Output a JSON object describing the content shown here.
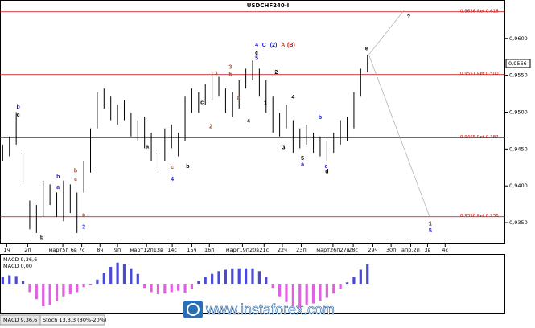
{
  "chart_data": {
    "type": "hlbar",
    "title": "USDCHF240-I",
    "xlim": [
      -0.4,
      74.4
    ],
    "ylim": [
      0.9325,
      0.9639
    ],
    "yticks": [
      {
        "value": 0.96,
        "label": "0,9600"
      },
      {
        "value": 0.955,
        "label": "0,9550"
      },
      {
        "value": 0.95,
        "label": "0,9500"
      },
      {
        "value": 0.945,
        "label": "0,9450"
      },
      {
        "value": 0.94,
        "label": "0,9400"
      },
      {
        "value": 0.935,
        "label": "0,9350"
      }
    ],
    "xticks": [
      {
        "value": 0.6,
        "label": "1ч"
      },
      {
        "value": 3.7,
        "label": "2п"
      },
      {
        "value": 8.9,
        "label": "март5п 6в"
      },
      {
        "value": 11.7,
        "label": "7с"
      },
      {
        "value": 14.4,
        "label": "8ч"
      },
      {
        "value": 17.0,
        "label": "9п"
      },
      {
        "value": 21.3,
        "label": "март12п13в"
      },
      {
        "value": 25.1,
        "label": "14с"
      },
      {
        "value": 28.0,
        "label": "15ч"
      },
      {
        "value": 30.6,
        "label": "16п"
      },
      {
        "value": 35.5,
        "label": "март19п20в"
      },
      {
        "value": 38.7,
        "label": "21с"
      },
      {
        "value": 41.4,
        "label": "22ч"
      },
      {
        "value": 44.2,
        "label": "23п"
      },
      {
        "value": 48.9,
        "label": "март26п27в"
      },
      {
        "value": 51.9,
        "label": "28с"
      },
      {
        "value": 54.8,
        "label": "29ч"
      },
      {
        "value": 57.5,
        "label": "30п"
      },
      {
        "value": 60.4,
        "label": "апр.2п"
      },
      {
        "value": 62.9,
        "label": "3в"
      },
      {
        "value": 65.5,
        "label": "4с"
      }
    ],
    "color": "#000000",
    "high": [
      0.9456,
      0.9467,
      0.95,
      0.9445,
      0.938,
      0.9374,
      0.9407,
      0.9402,
      0.9391,
      0.9407,
      0.9402,
      0.9391,
      0.9434,
      0.9478,
      0.9527,
      0.9532,
      0.9521,
      0.951,
      0.9516,
      0.9499,
      0.9489,
      0.9494,
      0.9472,
      0.9445,
      0.9478,
      0.9483,
      0.9472,
      0.9521,
      0.9532,
      0.9527,
      0.9538,
      0.9554,
      0.9548,
      0.9532,
      0.9527,
      0.9543,
      0.9559,
      0.957,
      0.9559,
      0.9543,
      0.9521,
      0.9499,
      0.951,
      0.9489,
      0.9478,
      0.9483,
      0.9472,
      0.9467,
      0.9461,
      0.9472,
      0.9489,
      0.9494,
      0.9527,
      0.9559,
      0.9578
    ],
    "low": [
      0.9434,
      0.944,
      0.9456,
      0.9402,
      0.9341,
      0.9336,
      0.9358,
      0.9374,
      0.9358,
      0.9352,
      0.9363,
      0.9336,
      0.9391,
      0.9418,
      0.9478,
      0.9505,
      0.9489,
      0.9483,
      0.9489,
      0.9467,
      0.9461,
      0.9451,
      0.9434,
      0.9418,
      0.9434,
      0.9451,
      0.944,
      0.9461,
      0.9499,
      0.9499,
      0.951,
      0.9516,
      0.9521,
      0.9499,
      0.9494,
      0.9505,
      0.9532,
      0.9543,
      0.9521,
      0.9499,
      0.9472,
      0.9467,
      0.9478,
      0.9445,
      0.9451,
      0.9456,
      0.9445,
      0.944,
      0.9434,
      0.9445,
      0.9456,
      0.9461,
      0.9478,
      0.9521,
      0.9554
    ],
    "levels": [
      {
        "value": 0.9636,
        "label": "0.9636 Ret 0.618"
      },
      {
        "value": 0.9551,
        "label": "0.9551 Ret 0.500"
      },
      {
        "value": 0.9465,
        "label": "0.9465 Ret 0.382"
      },
      {
        "value": 0.9358,
        "label": "0.9358 Ret 0.236"
      }
    ],
    "level_color": "#c00000",
    "last_price": {
      "value": 0.9566,
      "label": "0,9566"
    },
    "projections": [
      [
        [
          54.2,
          0.9578
        ],
        [
          59.4,
          0.9638
        ]
      ],
      [
        [
          54.2,
          0.9578
        ],
        [
          63.3,
          0.9356
        ]
      ]
    ],
    "annotations": [
      {
        "text": "b",
        "x": 2.3,
        "y": 0.9507,
        "color": "#1a1adc"
      },
      {
        "text": "c",
        "x": 2.3,
        "y": 0.9496,
        "color": "#000000"
      },
      {
        "text": "b",
        "x": 5.8,
        "y": 0.933,
        "color": "#000000"
      },
      {
        "text": "b",
        "x": 8.2,
        "y": 0.9412,
        "color": "#1a1adc"
      },
      {
        "text": "a",
        "x": 8.2,
        "y": 0.9398,
        "color": "#1a1adc"
      },
      {
        "text": "b",
        "x": 10.8,
        "y": 0.942,
        "color": "#a0522d"
      },
      {
        "text": "c",
        "x": 10.8,
        "y": 0.9409,
        "color": "#a0522d"
      },
      {
        "text": "c",
        "x": 12.0,
        "y": 0.936,
        "color": "#a0522d"
      },
      {
        "text": "2",
        "x": 12.0,
        "y": 0.9344,
        "color": "#1a1adc"
      },
      {
        "text": "a",
        "x": 21.4,
        "y": 0.9453,
        "color": "#000000"
      },
      {
        "text": "c",
        "x": 25.1,
        "y": 0.9425,
        "color": "#a0522d"
      },
      {
        "text": "4",
        "x": 25.1,
        "y": 0.9409,
        "color": "#1a1adc"
      },
      {
        "text": "b",
        "x": 27.4,
        "y": 0.9426,
        "color": "#000000"
      },
      {
        "text": "c",
        "x": 29.5,
        "y": 0.9513,
        "color": "#000000"
      },
      {
        "text": "2",
        "x": 30.8,
        "y": 0.948,
        "color": "#a0522d"
      },
      {
        "text": "3",
        "x": 31.6,
        "y": 0.9552,
        "color": "#a0522d"
      },
      {
        "text": "3",
        "x": 33.7,
        "y": 0.9561,
        "color": "#a0522d"
      },
      {
        "text": "5",
        "x": 33.7,
        "y": 0.9551,
        "color": "#a0522d"
      },
      {
        "text": "a",
        "x": 34.9,
        "y": 0.9519,
        "color": "#a0522d"
      },
      {
        "text": "4",
        "x": 36.4,
        "y": 0.9488,
        "color": "#000000"
      },
      {
        "text": "4",
        "x": 37.6,
        "y": 0.9591,
        "color": "#1a1adc"
      },
      {
        "text": "C",
        "x": 38.7,
        "y": 0.9591,
        "color": "#1a1adc"
      },
      {
        "text": "(2)",
        "x": 40.1,
        "y": 0.9591,
        "color": "#1a1adc"
      },
      {
        "text": "A",
        "x": 41.5,
        "y": 0.9591,
        "color": "#a0522d"
      },
      {
        "text": "(B)",
        "x": 42.7,
        "y": 0.9591,
        "color": "#d00000"
      },
      {
        "text": "c",
        "x": 37.6,
        "y": 0.958,
        "color": "#000000"
      },
      {
        "text": "5",
        "x": 37.6,
        "y": 0.9573,
        "color": "#1a1adc"
      },
      {
        "text": "2",
        "x": 40.5,
        "y": 0.9554,
        "color": "#000000"
      },
      {
        "text": "1",
        "x": 38.9,
        "y": 0.9512,
        "color": "#000000"
      },
      {
        "text": "4",
        "x": 43.0,
        "y": 0.952,
        "color": "#000000"
      },
      {
        "text": "3",
        "x": 41.6,
        "y": 0.9452,
        "color": "#000000"
      },
      {
        "text": "5",
        "x": 44.4,
        "y": 0.9437,
        "color": "#000000"
      },
      {
        "text": "a",
        "x": 44.4,
        "y": 0.9429,
        "color": "#1a1adc"
      },
      {
        "text": "b",
        "x": 47.0,
        "y": 0.9493,
        "color": "#1a1adc"
      },
      {
        "text": "c",
        "x": 47.9,
        "y": 0.9426,
        "color": "#1a1adc"
      },
      {
        "text": "d",
        "x": 48.0,
        "y": 0.9419,
        "color": "#000000"
      },
      {
        "text": "e",
        "x": 53.9,
        "y": 0.9586,
        "color": "#000000"
      },
      {
        "text": "?",
        "x": 60.1,
        "y": 0.9629,
        "color": "#000000"
      },
      {
        "text": "1",
        "x": 63.3,
        "y": 0.9348,
        "color": "#000000"
      },
      {
        "text": "5",
        "x": 63.3,
        "y": 0.9339,
        "color": "#1a1adc"
      }
    ],
    "macd": {
      "label": "MACD 9,36,6",
      "value_text": "MACD 0,00",
      "ylim": [
        -40,
        40
      ],
      "up_color": "#4a4ad8",
      "down_color": "#e060e0",
      "values": [
        10,
        12,
        11,
        4,
        -12,
        -22,
        -32,
        -30,
        -25,
        -18,
        -15,
        -12,
        -5,
        -2,
        6,
        15,
        24,
        30,
        28,
        22,
        14,
        -6,
        -12,
        -15,
        -14,
        -12,
        -10,
        -13,
        -8,
        4,
        10,
        14,
        18,
        20,
        22,
        22,
        22,
        22,
        18,
        10,
        -6,
        -18,
        -26,
        -32,
        -34,
        -30,
        -28,
        -24,
        -20,
        -14,
        -8,
        2,
        10,
        20,
        28
      ]
    }
  },
  "tabs": [
    "MACD 9,36,6",
    "Stoch 13,3,3 (80%-20%)"
  ],
  "watermark": "www.instaforex.com"
}
